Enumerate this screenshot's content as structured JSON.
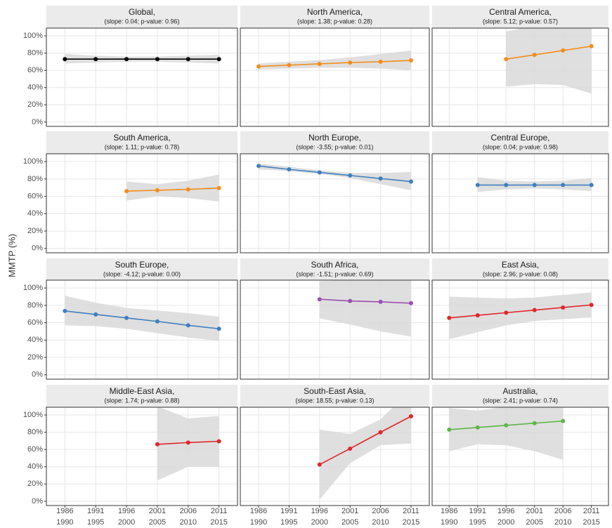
{
  "y_label": "MMTP (%)",
  "categories": [
    "1986\n1990",
    "1991\n1995",
    "1996\n2000",
    "2001\n2005",
    "2006\n2010",
    "2011\n2015"
  ],
  "ylim": [
    -5,
    109
  ],
  "yticks": [
    {
      "value": 0,
      "label": "0%"
    },
    {
      "value": 20,
      "label": "20%"
    },
    {
      "value": 40,
      "label": "40%"
    },
    {
      "value": 60,
      "label": "60%"
    },
    {
      "value": 80,
      "label": "80%"
    },
    {
      "value": 100,
      "label": "100%"
    }
  ],
  "grid": true,
  "chart_data": [
    {
      "type": "line",
      "title": "Global,",
      "subtitle": "(slope: 0.04; p-value: 0.96)",
      "color": "#000000",
      "values": [
        73,
        73,
        73,
        73,
        73,
        73
      ],
      "lower": [
        68,
        69,
        70,
        70,
        69,
        68
      ],
      "upper": [
        79,
        77,
        76,
        76,
        77,
        78
      ]
    },
    {
      "type": "line",
      "title": "North America,",
      "subtitle": "(slope: 1.38; p-value: 0.28)",
      "color": "#f28e1c",
      "values": [
        64.5,
        66,
        67.5,
        69,
        70,
        71.5
      ],
      "lower": [
        61,
        62,
        63,
        63,
        62,
        60
      ],
      "upper": [
        68,
        70,
        72,
        75,
        79,
        83
      ]
    },
    {
      "type": "line",
      "title": "Central America,",
      "subtitle": "(slope: 5.12; p-value: 0.57)",
      "color": "#f28e1c",
      "values": [
        null,
        null,
        73,
        78,
        83,
        88
      ],
      "lower": [
        null,
        null,
        41,
        44,
        43,
        33
      ],
      "upper": [
        null,
        null,
        105,
        112,
        123,
        143
      ]
    },
    {
      "type": "line",
      "title": "South America,",
      "subtitle": "(slope: 1.11; p-value: 0.78)",
      "color": "#f28e1c",
      "values": [
        null,
        null,
        66,
        67,
        68,
        69.5
      ],
      "lower": [
        null,
        null,
        55,
        60,
        58,
        54
      ],
      "upper": [
        null,
        null,
        77,
        74,
        78,
        85
      ]
    },
    {
      "type": "line",
      "title": "North Europe,",
      "subtitle": "(slope: -3.55; p-value: 0.01)",
      "color": "#3f7fbf",
      "values": [
        95,
        91,
        87.5,
        84,
        80.5,
        77
      ],
      "lower": [
        91,
        89,
        86,
        81,
        74,
        67
      ],
      "upper": [
        98,
        94,
        90,
        87,
        87,
        88
      ]
    },
    {
      "type": "line",
      "title": "Central Europe,",
      "subtitle": "(slope: 0.04; p-value: 0.98)",
      "color": "#3f7fbf",
      "values": [
        null,
        73,
        73,
        73,
        73,
        73
      ],
      "lower": [
        null,
        65,
        68,
        69,
        68,
        66
      ],
      "upper": [
        null,
        82,
        78,
        77,
        78,
        81
      ]
    },
    {
      "type": "line",
      "title": "South Europe,",
      "subtitle": "(slope: -4.12; p-value: 0.00)",
      "color": "#3f7fbf",
      "values": [
        73.5,
        69.5,
        65.5,
        61.5,
        57,
        53
      ],
      "lower": [
        57,
        56,
        53,
        48,
        43,
        39
      ],
      "upper": [
        91,
        83,
        77,
        74,
        71,
        67
      ]
    },
    {
      "type": "line",
      "title": "South Africa,",
      "subtitle": "(slope: -1.51; p-value: 0.69)",
      "color": "#9b4fb0",
      "values": [
        null,
        null,
        87,
        85,
        84,
        82.5
      ],
      "lower": [
        null,
        null,
        65,
        58,
        50,
        44
      ],
      "upper": [
        null,
        null,
        108,
        109,
        115,
        120
      ]
    },
    {
      "type": "line",
      "title": "East Asia,",
      "subtitle": "(slope: 2.96; p-value: 0.08)",
      "color": "#e0262a",
      "values": [
        65.5,
        68.5,
        71.5,
        74.5,
        77.5,
        80.5
      ],
      "lower": [
        41,
        49,
        57,
        62,
        64,
        66
      ],
      "upper": [
        90,
        89,
        88,
        89,
        92,
        95
      ]
    },
    {
      "type": "line",
      "title": "Middle-East Asia,",
      "subtitle": "(slope: 1.74; p-value: 0.88)",
      "color": "#e0262a",
      "values": [
        null,
        null,
        null,
        66,
        68,
        69.5
      ],
      "lower": [
        null,
        null,
        null,
        24,
        40,
        40
      ],
      "upper": [
        null,
        null,
        null,
        110,
        96,
        99
      ]
    },
    {
      "type": "line",
      "title": "South-East Asia,",
      "subtitle": "(slope: 18.55; p-value: 0.13)",
      "color": "#e0262a",
      "values": [
        null,
        null,
        42.5,
        61,
        80,
        98.5
      ],
      "lower": [
        null,
        null,
        2,
        44,
        65,
        67
      ],
      "upper": [
        null,
        null,
        83,
        78,
        95,
        130
      ]
    },
    {
      "type": "line",
      "title": "Australia,",
      "subtitle": "(slope: 2.41; p-value: 0.74)",
      "color": "#5cb648",
      "values": [
        83,
        85.5,
        88,
        90.5,
        93,
        null
      ],
      "lower": [
        58,
        66,
        65,
        58,
        48,
        null
      ],
      "upper": [
        108,
        105,
        110,
        122,
        138,
        null
      ]
    }
  ]
}
